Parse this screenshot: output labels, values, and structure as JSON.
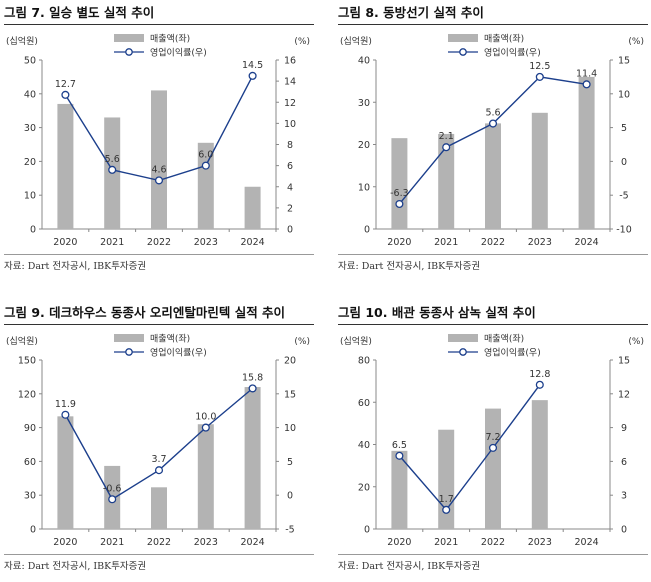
{
  "chart_data": [
    {
      "type": "bar+line",
      "title": "그림 7. 일승 별도 실적 추이",
      "left_unit": "(십억원)",
      "right_unit": "(%)",
      "legend": [
        "매출액(좌)",
        "영업이익률(우)"
      ],
      "categories": [
        "2020",
        "2021",
        "2022",
        "2023",
        "2024"
      ],
      "series": [
        {
          "name": "매출액(좌)",
          "axis": "left",
          "values": [
            37,
            33,
            41,
            25.5,
            12.5
          ]
        },
        {
          "name": "영업이익률(우)",
          "axis": "right",
          "values": [
            12.7,
            5.6,
            4.6,
            6.0,
            14.5
          ],
          "labels": [
            "12.7",
            "5.6",
            "4.6",
            "6.0",
            "14.5"
          ]
        }
      ],
      "left_ticks": [
        "0",
        "10",
        "20",
        "30",
        "40",
        "50"
      ],
      "right_ticks": [
        "0",
        "2",
        "4",
        "6",
        "8",
        "10",
        "12",
        "14",
        "16"
      ],
      "ylim_left": [
        0,
        50
      ],
      "ylim_right": [
        0,
        16
      ],
      "source": "자료: Dart 전자공시, IBK투자증권"
    },
    {
      "type": "bar+line",
      "title": "그림 8. 동방선기 실적 추이",
      "left_unit": "(십억원)",
      "right_unit": "(%)",
      "legend": [
        "매출액(좌)",
        "영업이익률(우)"
      ],
      "categories": [
        "2020",
        "2021",
        "2022",
        "2023",
        "2024"
      ],
      "series": [
        {
          "name": "매출액(좌)",
          "axis": "left",
          "values": [
            21.5,
            22.5,
            25,
            27.5,
            36
          ]
        },
        {
          "name": "영업이익률(우)",
          "axis": "right",
          "values": [
            -6.3,
            2.1,
            5.6,
            12.5,
            11.4
          ],
          "labels": [
            "-6.3",
            "2.1",
            "5.6",
            "12.5",
            "11.4"
          ]
        }
      ],
      "left_ticks": [
        "0",
        "10",
        "20",
        "30",
        "40"
      ],
      "right_ticks": [
        "-10",
        "-5",
        "0",
        "5",
        "10",
        "15"
      ],
      "ylim_left": [
        0,
        40
      ],
      "ylim_right": [
        -10,
        15
      ],
      "source": "자료: Dart 전자공시, IBK투자증권"
    },
    {
      "type": "bar+line",
      "title": "그림 9. 데크하우스 동종사 오리엔탈마린텍 실적 추이",
      "left_unit": "(십억원)",
      "right_unit": "(%)",
      "legend": [
        "매출액(좌)",
        "영업이익률(우)"
      ],
      "categories": [
        "2020",
        "2021",
        "2022",
        "2023",
        "2024"
      ],
      "series": [
        {
          "name": "매출액(좌)",
          "axis": "left",
          "values": [
            100,
            56,
            37,
            93,
            126
          ]
        },
        {
          "name": "영업이익률(우)",
          "axis": "right",
          "values": [
            11.9,
            -0.6,
            3.7,
            10.0,
            15.8
          ],
          "labels": [
            "11.9",
            "-0.6",
            "3.7",
            "10.0",
            "15.8"
          ]
        }
      ],
      "left_ticks": [
        "0",
        "30",
        "60",
        "90",
        "120",
        "150"
      ],
      "right_ticks": [
        "-5",
        "0",
        "5",
        "10",
        "15",
        "20"
      ],
      "ylim_left": [
        0,
        150
      ],
      "ylim_right": [
        -5,
        20
      ],
      "source": "자료: Dart 전자공시, IBK투자증권"
    },
    {
      "type": "bar+line",
      "title": "그림 10. 배관 동종사 삼녹 실적 추이",
      "left_unit": "(십억원)",
      "right_unit": "(%)",
      "legend": [
        "매출액(좌)",
        "영업이익률(우)"
      ],
      "categories": [
        "2020",
        "2021",
        "2022",
        "2023",
        "2024"
      ],
      "series": [
        {
          "name": "매출액(좌)",
          "axis": "left",
          "values": [
            37,
            47,
            57,
            61,
            null
          ]
        },
        {
          "name": "영업이익률(우)",
          "axis": "right",
          "values": [
            6.5,
            1.7,
            7.2,
            12.8,
            null
          ],
          "labels": [
            "6.5",
            "1.7",
            "7.2",
            "12.8",
            ""
          ]
        }
      ],
      "left_ticks": [
        "0",
        "20",
        "40",
        "60",
        "80"
      ],
      "right_ticks": [
        "0",
        "3",
        "6",
        "9",
        "12",
        "15"
      ],
      "ylim_left": [
        0,
        80
      ],
      "ylim_right": [
        0,
        15
      ],
      "source": "자료: Dart 전자공시, IBK투자증권"
    }
  ],
  "colors": {
    "bar": "#b3b3b3",
    "line": "#1c3f8c",
    "marker_fill": "#ffffff",
    "axis": "#888888"
  }
}
